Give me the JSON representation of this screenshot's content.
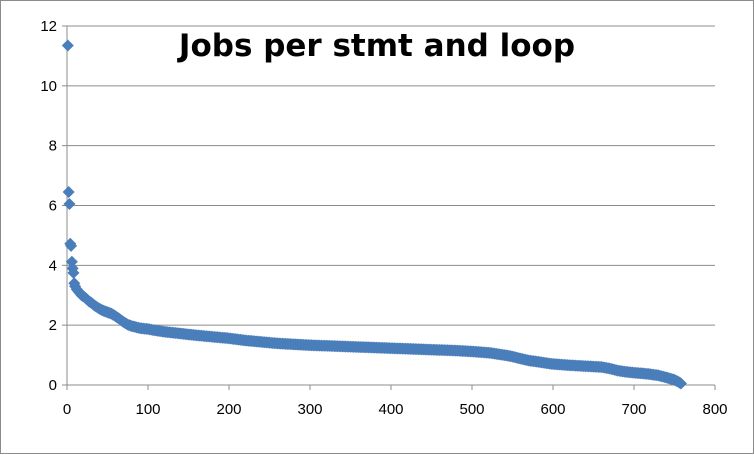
{
  "chart_data": {
    "type": "scatter",
    "title": "Jobs per stmt and loop",
    "xlabel": "",
    "ylabel": "",
    "xlim": [
      0,
      800
    ],
    "ylim": [
      0,
      12
    ],
    "x_ticks": [
      "0",
      "100",
      "200",
      "300",
      "400",
      "500",
      "600",
      "700",
      "800"
    ],
    "y_ticks": [
      "0",
      "2",
      "4",
      "6",
      "8",
      "10",
      "12"
    ],
    "grid": "horizontal",
    "legend": "none",
    "marker": "diamond",
    "series_color": "#4a7ebb",
    "series": [
      {
        "points": [
          [
            1,
            11.35
          ],
          [
            2,
            6.45
          ],
          [
            3,
            6.05
          ],
          [
            4,
            4.72
          ],
          [
            5,
            4.65
          ],
          [
            6,
            4.12
          ],
          [
            7,
            3.9
          ],
          [
            8,
            3.75
          ],
          [
            9,
            3.4
          ],
          [
            10,
            3.3
          ],
          [
            12,
            3.2
          ],
          [
            15,
            3.1
          ],
          [
            18,
            3.0
          ],
          [
            21,
            2.95
          ],
          [
            24,
            2.88
          ],
          [
            27,
            2.8
          ],
          [
            30,
            2.75
          ],
          [
            33,
            2.68
          ],
          [
            36,
            2.62
          ],
          [
            40,
            2.55
          ],
          [
            45,
            2.48
          ],
          [
            50,
            2.43
          ],
          [
            55,
            2.38
          ],
          [
            60,
            2.3
          ],
          [
            65,
            2.2
          ],
          [
            70,
            2.1
          ],
          [
            75,
            2.02
          ],
          [
            80,
            1.97
          ],
          [
            90,
            1.9
          ],
          [
            100,
            1.87
          ],
          [
            110,
            1.82
          ],
          [
            120,
            1.78
          ],
          [
            140,
            1.72
          ],
          [
            160,
            1.66
          ],
          [
            180,
            1.61
          ],
          [
            200,
            1.56
          ],
          [
            220,
            1.49
          ],
          [
            240,
            1.44
          ],
          [
            260,
            1.39
          ],
          [
            280,
            1.36
          ],
          [
            300,
            1.33
          ],
          [
            320,
            1.31
          ],
          [
            340,
            1.29
          ],
          [
            360,
            1.27
          ],
          [
            380,
            1.25
          ],
          [
            400,
            1.23
          ],
          [
            420,
            1.21
          ],
          [
            440,
            1.19
          ],
          [
            460,
            1.17
          ],
          [
            480,
            1.15
          ],
          [
            500,
            1.12
          ],
          [
            520,
            1.08
          ],
          [
            540,
            1.0
          ],
          [
            550,
            0.95
          ],
          [
            560,
            0.88
          ],
          [
            570,
            0.82
          ],
          [
            580,
            0.78
          ],
          [
            590,
            0.74
          ],
          [
            600,
            0.7
          ],
          [
            620,
            0.66
          ],
          [
            640,
            0.63
          ],
          [
            660,
            0.6
          ],
          [
            670,
            0.55
          ],
          [
            680,
            0.48
          ],
          [
            690,
            0.44
          ],
          [
            700,
            0.41
          ],
          [
            710,
            0.39
          ],
          [
            720,
            0.36
          ],
          [
            730,
            0.32
          ],
          [
            740,
            0.25
          ],
          [
            745,
            0.21
          ],
          [
            750,
            0.17
          ],
          [
            755,
            0.1
          ],
          [
            758,
            0.05
          ]
        ]
      }
    ]
  }
}
